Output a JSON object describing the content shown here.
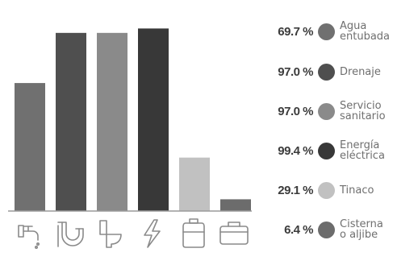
{
  "chart_data": {
    "type": "bar",
    "categories": [
      "Agua\nentubada",
      "Drenaje",
      "Servicio\nsanitario",
      "Energía\neléctrica",
      "Tinaco",
      "Cisterna\no aljibe"
    ],
    "values": [
      69.7,
      97.0,
      97.0,
      99.4,
      29.1,
      6.4
    ],
    "value_labels": [
      "69.7 %",
      "97.0 %",
      "97.0 %",
      "99.4 %",
      "29.1 %",
      "6.4 %"
    ],
    "colors": [
      "#707070",
      "#4f4f4f",
      "#8a8a8a",
      "#383838",
      "#c1c1c1",
      "#6c6c6c"
    ],
    "icons": [
      "faucet-icon",
      "drain-pipe-icon",
      "toilet-icon",
      "lightning-icon",
      "water-tank-icon",
      "cistern-icon"
    ],
    "ylim": [
      0,
      100
    ],
    "grid": false,
    "legend_position": "right",
    "title": "",
    "xlabel": "",
    "ylabel": ""
  }
}
